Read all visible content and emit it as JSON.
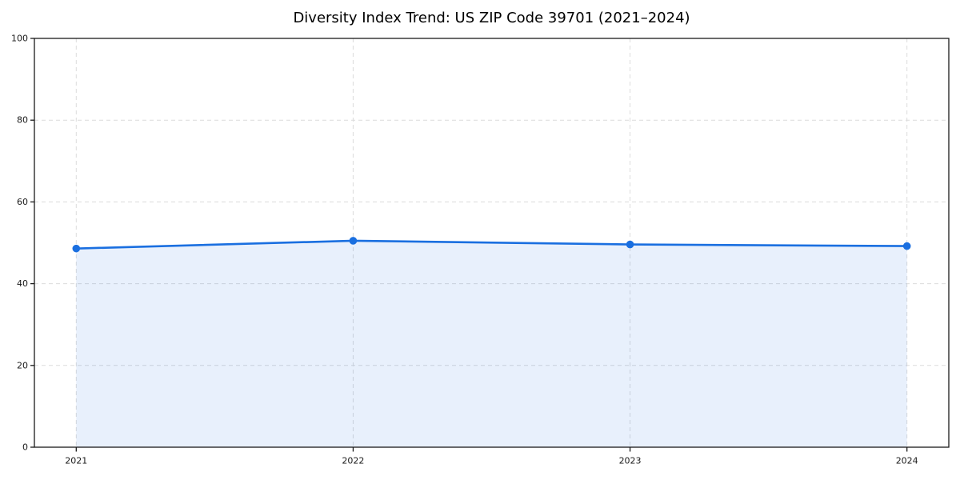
{
  "chart_data": {
    "type": "area",
    "title": "Diversity Index Trend: US ZIP Code 39701 (2021–2024)",
    "categories": [
      "2021",
      "2022",
      "2023",
      "2024"
    ],
    "series": [
      {
        "name": "Diversity Index",
        "values": [
          48.6,
          50.5,
          49.6,
          49.2
        ]
      }
    ],
    "xlabel": "",
    "ylabel": "",
    "ylim": [
      0,
      100
    ],
    "yticks": [
      0,
      20,
      40,
      60,
      80,
      100
    ],
    "grid": true,
    "grid_style": "dashed",
    "legend_position": "none",
    "colors": {
      "line": "#1a6fe0",
      "marker": "#1a6fe0",
      "fill": "#1a6fe0",
      "fill_opacity": 0.1,
      "grid": "#dcdcdc",
      "spine": "#1a1a1a",
      "tick": "#1a1a1a",
      "tick_label": "#1a1a1a",
      "title": "#000000",
      "background": "#ffffff"
    }
  }
}
